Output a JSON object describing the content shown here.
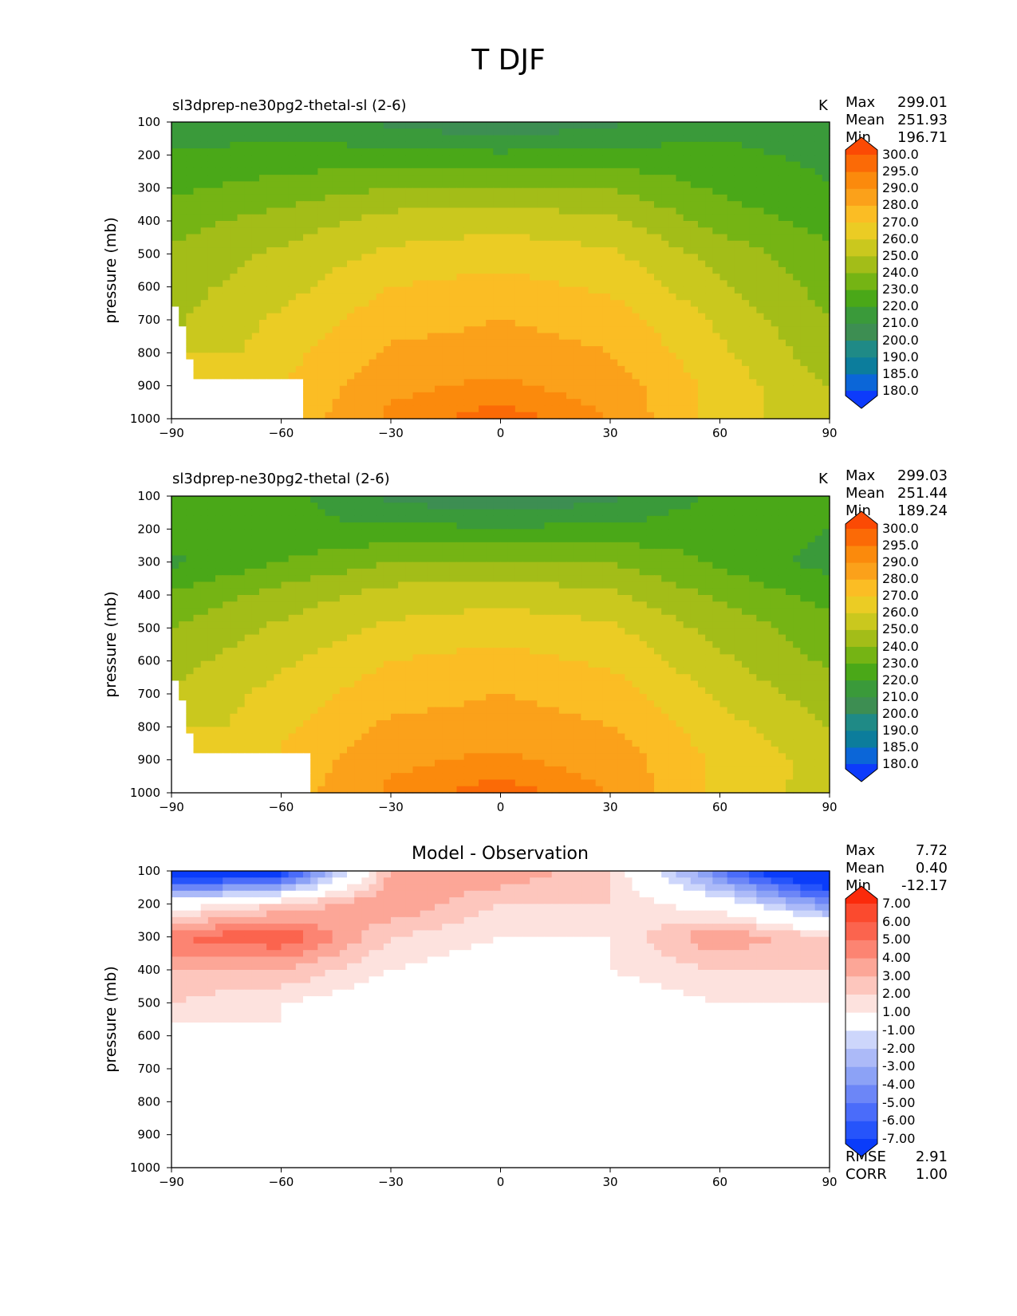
{
  "figure_title": "T DJF",
  "colors": {
    "t_levels": [
      180,
      185,
      190,
      200,
      210,
      220,
      230,
      240,
      250,
      260,
      270,
      280,
      290,
      295,
      300
    ],
    "t_fills": [
      "#0d3bfb",
      "#0b66d8",
      "#0c7d9c",
      "#1f8a86",
      "#3d8e52",
      "#3a9a3a",
      "#4aa818",
      "#75b414",
      "#a3bd18",
      "#cac81e",
      "#ebcc24",
      "#fbbd24",
      "#fba11a",
      "#fb8a0c",
      "#fb6a06",
      "#fb4a04"
    ],
    "d_levels": [
      -7,
      -6,
      -5,
      -4,
      -3,
      -2,
      -1,
      1,
      2,
      3,
      4,
      5,
      6,
      7
    ],
    "d_fills": [
      "#0a3cfa",
      "#2654fb",
      "#4a6cfa",
      "#6c86f7",
      "#8ca2f6",
      "#acbaf8",
      "#cdd6fb",
      "#ffffff",
      "#fde2de",
      "#fdc6bd",
      "#fca697",
      "#fc8472",
      "#fb644e",
      "#fb4a2e",
      "#fb2a0b"
    ]
  },
  "panels": [
    {
      "title": "sl3dprep-ne30pg2-thetal-sl (2-6)",
      "units": "K",
      "stats": [
        {
          "label": "Max",
          "value": "299.01"
        },
        {
          "label": "Mean",
          "value": "251.93"
        },
        {
          "label": "Min",
          "value": "196.71"
        }
      ],
      "colorbar_labels": [
        "300.0",
        "295.0",
        "290.0",
        "280.0",
        "270.0",
        "260.0",
        "250.0",
        "240.0",
        "230.0",
        "220.0",
        "210.0",
        "200.0",
        "190.0",
        "185.0",
        "180.0"
      ],
      "ylabel": "pressure (mb)",
      "yticks": [
        "100",
        "200",
        "300",
        "400",
        "500",
        "600",
        "700",
        "800",
        "900",
        "1000"
      ],
      "xticks": [
        "−90",
        "−60",
        "−30",
        "0",
        "30",
        "60",
        "90"
      ]
    },
    {
      "title": "sl3dprep-ne30pg2-thetal (2-6)",
      "units": "K",
      "stats": [
        {
          "label": "Max",
          "value": "299.03"
        },
        {
          "label": "Mean",
          "value": "251.44"
        },
        {
          "label": "Min",
          "value": "189.24"
        }
      ],
      "colorbar_labels": [
        "300.0",
        "295.0",
        "290.0",
        "280.0",
        "270.0",
        "260.0",
        "250.0",
        "240.0",
        "230.0",
        "220.0",
        "210.0",
        "200.0",
        "190.0",
        "185.0",
        "180.0"
      ],
      "ylabel": "pressure (mb)",
      "yticks": [
        "100",
        "200",
        "300",
        "400",
        "500",
        "600",
        "700",
        "800",
        "900",
        "1000"
      ],
      "xticks": [
        "−90",
        "−60",
        "−30",
        "0",
        "30",
        "60",
        "90"
      ]
    },
    {
      "title": "Model - Observation",
      "units": "",
      "stats": [
        {
          "label": "Max",
          "value": "7.72"
        },
        {
          "label": "Mean",
          "value": "0.40"
        },
        {
          "label": "Min",
          "value": "-12.17"
        }
      ],
      "colorbar_labels": [
        "7.00",
        "6.00",
        "5.00",
        "4.00",
        "3.00",
        "2.00",
        "1.00",
        "-1.00",
        "-2.00",
        "-3.00",
        "-4.00",
        "-5.00",
        "-6.00",
        "-7.00"
      ],
      "ylabel": "pressure (mb)",
      "yticks": [
        "100",
        "200",
        "300",
        "400",
        "500",
        "600",
        "700",
        "800",
        "900",
        "1000"
      ],
      "xticks": [
        "−90",
        "−60",
        "−30",
        "0",
        "30",
        "60",
        "90"
      ],
      "metrics": [
        {
          "label": "RMSE",
          "value": "2.91"
        },
        {
          "label": "CORR",
          "value": "1.00"
        }
      ]
    }
  ],
  "chart_data": [
    {
      "type": "heatmap",
      "title": "sl3dprep-ne30pg2-thetal-sl (2-6)",
      "units": "K",
      "ylabel": "pressure (mb)",
      "xlim": [
        -90,
        90
      ],
      "ylim": [
        1000,
        100
      ],
      "levels": [
        180,
        185,
        190,
        200,
        210,
        220,
        230,
        240,
        250,
        260,
        270,
        280,
        290,
        295,
        300
      ],
      "x": [
        -90,
        -60,
        -30,
        0,
        30,
        60,
        90
      ],
      "y": [
        100,
        200,
        300,
        400,
        500,
        600,
        700,
        800,
        900,
        1000
      ],
      "z": [
        [
          210,
          215,
          208,
          200,
          208,
          218,
          212
        ],
        [
          222,
          224,
          224,
          222,
          224,
          222,
          218
        ],
        [
          228,
          234,
          240,
          242,
          240,
          228,
          220
        ],
        [
          236,
          244,
          254,
          256,
          252,
          236,
          226
        ],
        [
          242,
          252,
          262,
          266,
          262,
          246,
          232
        ],
        [
          246,
          256,
          270,
          274,
          268,
          252,
          236
        ],
        [
          248,
          262,
          276,
          280,
          276,
          258,
          240
        ],
        [
          250,
          266,
          282,
          284,
          280,
          262,
          244
        ],
        [
          null,
          270,
          288,
          292,
          286,
          266,
          250
        ],
        [
          null,
          272,
          292,
          298,
          290,
          264,
          254
        ]
      ],
      "stats": {
        "max": 299.01,
        "mean": 251.93,
        "min": 196.71
      }
    },
    {
      "type": "heatmap",
      "title": "sl3dprep-ne30pg2-thetal (2-6)",
      "units": "K",
      "ylabel": "pressure (mb)",
      "xlim": [
        -90,
        90
      ],
      "ylim": [
        1000,
        100
      ],
      "levels": [
        180,
        185,
        190,
        200,
        210,
        220,
        230,
        240,
        250,
        260,
        270,
        280,
        290,
        295,
        300
      ],
      "x": [
        -90,
        -60,
        -30,
        0,
        30,
        60,
        90
      ],
      "y": [
        100,
        200,
        300,
        400,
        500,
        600,
        700,
        800,
        900,
        1000
      ],
      "z": [
        [
          222,
          224,
          208,
          198,
          208,
          222,
          222
        ],
        [
          226,
          222,
          222,
          222,
          222,
          226,
          220
        ],
        [
          218,
          230,
          240,
          242,
          240,
          228,
          216
        ],
        [
          232,
          244,
          254,
          256,
          252,
          238,
          226
        ],
        [
          240,
          252,
          262,
          266,
          262,
          246,
          234
        ],
        [
          246,
          258,
          270,
          274,
          268,
          252,
          238
        ],
        [
          250,
          264,
          276,
          280,
          276,
          258,
          244
        ],
        [
          252,
          268,
          282,
          284,
          280,
          264,
          250
        ],
        [
          null,
          272,
          288,
          292,
          286,
          268,
          256
        ],
        [
          null,
          274,
          292,
          298,
          290,
          266,
          256
        ]
      ],
      "stats": {
        "max": 299.03,
        "mean": 251.44,
        "min": 189.24
      }
    },
    {
      "type": "heatmap",
      "title": "Model - Observation",
      "ylabel": "pressure (mb)",
      "xlim": [
        -90,
        90
      ],
      "ylim": [
        1000,
        100
      ],
      "levels": [
        -7,
        -6,
        -5,
        -4,
        -3,
        -2,
        -1,
        1,
        2,
        3,
        4,
        5,
        6,
        7
      ],
      "x": [
        -90,
        -60,
        -30,
        0,
        30,
        60,
        90
      ],
      "y": [
        100,
        200,
        300,
        400,
        500,
        600,
        700,
        800,
        900,
        1000
      ],
      "z": [
        [
          -10,
          -8,
          3,
          4,
          2,
          -5,
          -11
        ],
        [
          0,
          2,
          4,
          2,
          2,
          0,
          -4
        ],
        [
          5,
          6,
          2,
          1,
          1,
          4,
          2
        ],
        [
          3,
          3,
          1,
          0,
          1,
          2,
          2
        ],
        [
          2,
          1,
          0,
          0,
          0,
          1,
          1
        ],
        [
          0,
          1,
          0,
          0,
          0,
          1,
          0
        ],
        [
          0,
          1,
          0,
          0,
          0,
          0,
          0
        ],
        [
          0,
          0,
          0,
          0,
          0,
          0,
          0
        ],
        [
          0,
          0,
          0,
          0,
          0,
          0,
          0
        ],
        [
          0,
          -1,
          0,
          0,
          0,
          -1,
          0
        ]
      ],
      "stats": {
        "max": 7.72,
        "mean": 0.4,
        "min": -12.17
      },
      "metrics": {
        "rmse": 2.91,
        "corr": 1.0
      }
    }
  ]
}
